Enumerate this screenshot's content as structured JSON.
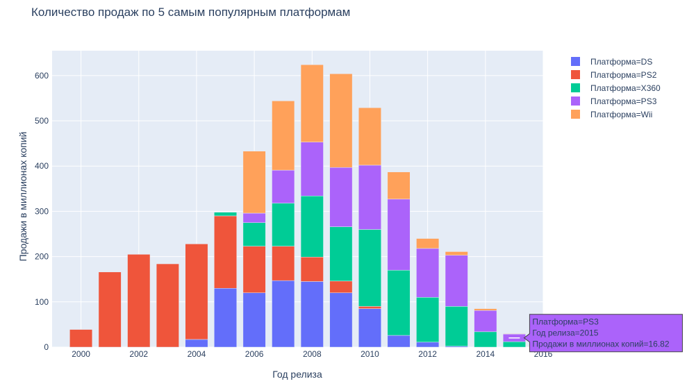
{
  "chart_data": {
    "type": "bar",
    "barmode": "stack",
    "title": "Количество продаж по 5 самым популярным платформам",
    "xlabel": "Год релиза",
    "ylabel": "Продажи в миллионах копий",
    "xlim": [
      1999,
      2016
    ],
    "ylim": [
      0,
      655
    ],
    "x_ticks": [
      "2000",
      "2002",
      "2004",
      "2006",
      "2008",
      "2010",
      "2012",
      "2014",
      "2016"
    ],
    "y_ticks": [
      "0",
      "100",
      "200",
      "300",
      "400",
      "500",
      "600"
    ],
    "grid": true,
    "legend_position": "top-right",
    "categories": [
      2000,
      2001,
      2002,
      2003,
      2004,
      2005,
      2006,
      2007,
      2008,
      2009,
      2010,
      2011,
      2012,
      2013,
      2014,
      2015
    ],
    "series": [
      {
        "name": "Платформа=DS",
        "color": "#636efa",
        "values": [
          0,
          0,
          0,
          0,
          17,
          130,
          120,
          147,
          145,
          120,
          85,
          26,
          11,
          2,
          0,
          0
        ]
      },
      {
        "name": "Платформа=PS2",
        "color": "#ef553b",
        "values": [
          39,
          166,
          205,
          184,
          211,
          160,
          103,
          76,
          54,
          26,
          5,
          0,
          0,
          0,
          0,
          0
        ]
      },
      {
        "name": "Платформа=X360",
        "color": "#00cc96",
        "values": [
          0,
          0,
          0,
          0,
          0,
          8,
          52,
          95,
          135,
          120,
          170,
          144,
          99,
          88,
          34,
          12
        ]
      },
      {
        "name": "Платформа=PS3",
        "color": "#ab63fa",
        "values": [
          0,
          0,
          0,
          0,
          0,
          0,
          21,
          73,
          119,
          131,
          142,
          157,
          108,
          113,
          47,
          16.82
        ]
      },
      {
        "name": "Платформа=Wii",
        "color": "#ffa15a",
        "values": [
          0,
          0,
          0,
          0,
          0,
          0,
          137,
          153,
          171,
          207,
          127,
          60,
          22,
          8,
          4,
          1
        ]
      }
    ],
    "hover": {
      "series_index": 3,
      "category_index": 15,
      "lines": [
        "Платформа=PS3",
        "Год релиза=2015",
        "Продажи в миллионах копий=16.82"
      ]
    }
  }
}
